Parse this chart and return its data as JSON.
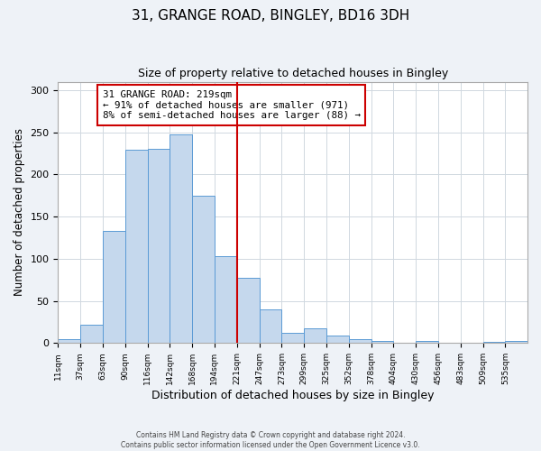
{
  "title": "31, GRANGE ROAD, BINGLEY, BD16 3DH",
  "subtitle": "Size of property relative to detached houses in Bingley",
  "xlabel": "Distribution of detached houses by size in Bingley",
  "ylabel": "Number of detached properties",
  "bin_labels": [
    "11sqm",
    "37sqm",
    "63sqm",
    "90sqm",
    "116sqm",
    "142sqm",
    "168sqm",
    "194sqm",
    "221sqm",
    "247sqm",
    "273sqm",
    "299sqm",
    "325sqm",
    "352sqm",
    "378sqm",
    "404sqm",
    "430sqm",
    "456sqm",
    "483sqm",
    "509sqm",
    "535sqm"
  ],
  "bin_edges": [
    11,
    37,
    63,
    90,
    116,
    142,
    168,
    194,
    221,
    247,
    273,
    299,
    325,
    352,
    378,
    404,
    430,
    456,
    483,
    509,
    535,
    561
  ],
  "bar_heights": [
    5,
    22,
    133,
    229,
    230,
    247,
    175,
    103,
    77,
    40,
    12,
    17,
    9,
    5,
    3,
    0,
    2,
    0,
    0,
    1,
    2
  ],
  "bar_color": "#c5d8ed",
  "bar_edgecolor": "#5b9bd5",
  "grid_color": "#d0d8e0",
  "vline_x": 221,
  "vline_color": "#cc0000",
  "annotation_text_line1": "31 GRANGE ROAD: 219sqm",
  "annotation_text_line2": "← 91% of detached houses are smaller (971)",
  "annotation_text_line3": "8% of semi-detached houses are larger (88) →",
  "footnote1": "Contains HM Land Registry data © Crown copyright and database right 2024.",
  "footnote2": "Contains public sector information licensed under the Open Government Licence v3.0.",
  "ylim": [
    0,
    310
  ],
  "yticks": [
    0,
    50,
    100,
    150,
    200,
    250,
    300
  ],
  "background_color": "#eef2f7",
  "plot_background": "#ffffff"
}
